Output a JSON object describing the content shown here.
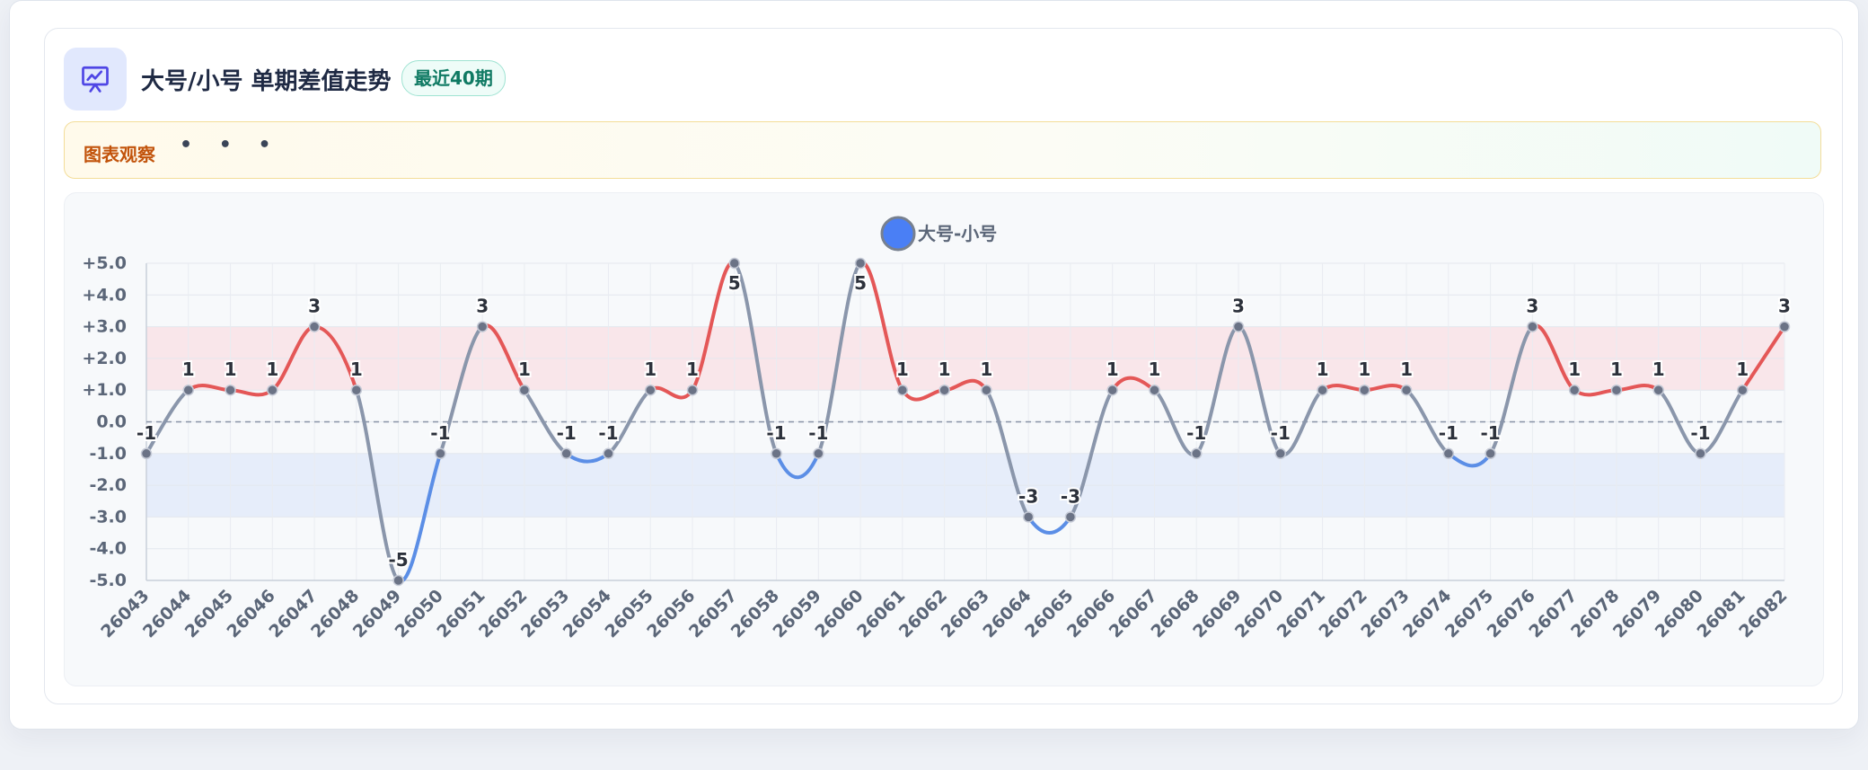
{
  "header": {
    "title": "大号/小号 单期差值走势",
    "badge": "最近40期",
    "icon": "presentation-chart-icon"
  },
  "observation": {
    "label": "图表观察",
    "dots": "• • •"
  },
  "colors": {
    "positive": "#e45757",
    "negative": "#5b8ee6",
    "neutral": "#8a96ab",
    "legend_dot": "#4a7ff5",
    "positive_band": "#f9e6ea",
    "negative_band": "#e6edfa"
  },
  "chart_data": {
    "type": "line",
    "title": "",
    "xlabel": "",
    "ylabel": "",
    "ylim": [
      -5,
      5
    ],
    "yticks": [
      "+5.0",
      "+4.0",
      "+3.0",
      "+2.0",
      "+1.0",
      "0.0",
      "-1.0",
      "-2.0",
      "-3.0",
      "-4.0",
      "-5.0"
    ],
    "bands": [
      {
        "from": 1,
        "to": 3,
        "color": "positive_band"
      },
      {
        "from": -3,
        "to": -1,
        "color": "negative_band"
      }
    ],
    "reference_line": 0,
    "grid": true,
    "legend": "top-center",
    "categories": [
      "26043",
      "26044",
      "26045",
      "26046",
      "26047",
      "26048",
      "26049",
      "26050",
      "26051",
      "26052",
      "26053",
      "26054",
      "26055",
      "26056",
      "26057",
      "26058",
      "26059",
      "26060",
      "26061",
      "26062",
      "26063",
      "26064",
      "26065",
      "26066",
      "26067",
      "26068",
      "26069",
      "26070",
      "26071",
      "26072",
      "26073",
      "26074",
      "26075",
      "26076",
      "26077",
      "26078",
      "26079",
      "26080",
      "26081",
      "26082"
    ],
    "series": [
      {
        "name": "大号-小号",
        "values": [
          -1,
          1,
          1,
          1,
          3,
          1,
          -5,
          -1,
          3,
          1,
          -1,
          -1,
          1,
          1,
          5,
          -1,
          -1,
          5,
          1,
          1,
          1,
          -3,
          -3,
          1,
          1,
          -1,
          3,
          -1,
          1,
          1,
          1,
          -1,
          -1,
          3,
          1,
          1,
          1,
          -1,
          1,
          3
        ]
      }
    ]
  }
}
